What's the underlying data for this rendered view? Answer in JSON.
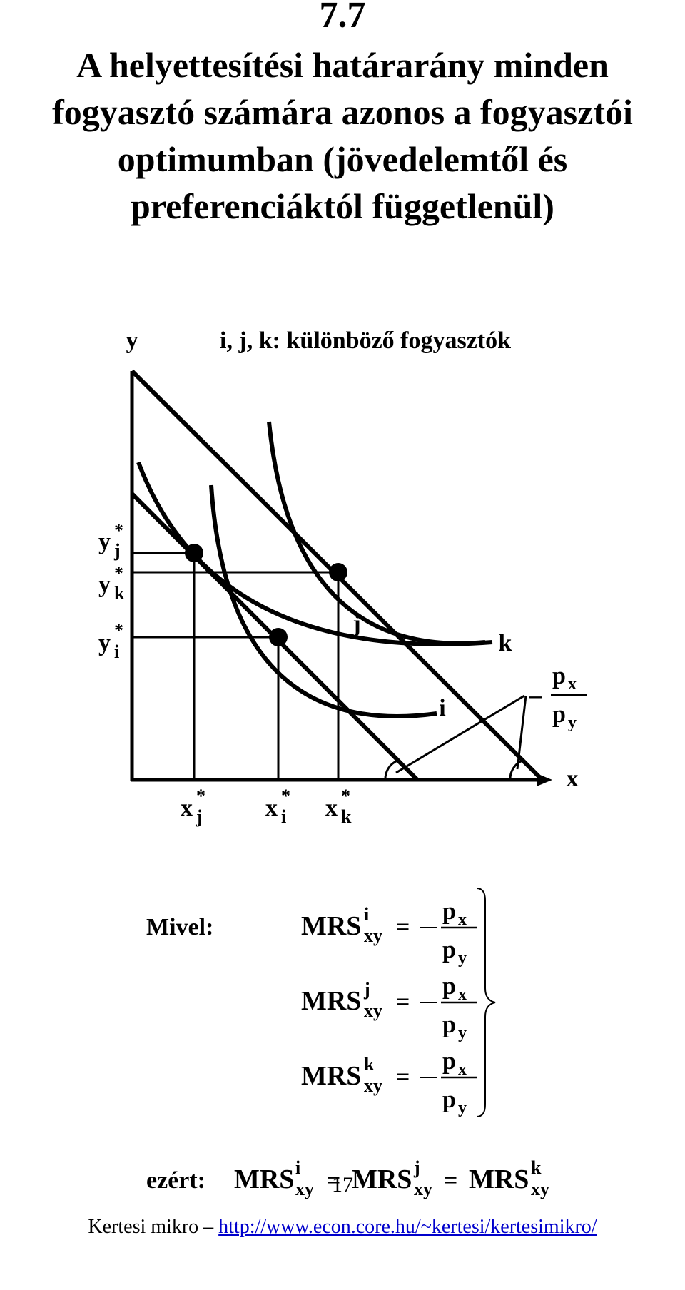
{
  "slide": {
    "number": "7.7",
    "title_lines": [
      "A helyettesítési határarány minden",
      "fogyasztó számára azonos a fogyasztói",
      "optimumban (jövedelemtől és",
      "preferenciáktól függetlenül)"
    ]
  },
  "diagram": {
    "y_axis": "y",
    "x_axis": "x",
    "note": "i, j, k: különböző fogyasztók",
    "curve_labels": {
      "i": "i",
      "j": "j",
      "k": "k"
    },
    "y_ticks": [
      {
        "base": "y",
        "sup": "*",
        "sub": "j"
      },
      {
        "base": "y",
        "sup": "*",
        "sub": "k"
      },
      {
        "base": "y",
        "sup": "*",
        "sub": "i"
      }
    ],
    "x_ticks": [
      {
        "base": "x",
        "sup": "*",
        "sub": "j"
      },
      {
        "base": "x",
        "sup": "*",
        "sub": "i"
      },
      {
        "base": "x",
        "sup": "*",
        "sub": "k"
      }
    ],
    "slope": {
      "sign": "–",
      "num": "p",
      "num_sub": "x",
      "den": "p",
      "den_sub": "y"
    }
  },
  "equations": {
    "lead": "Mivel:",
    "mrs": "MRS",
    "sub": "xy",
    "eq": "=",
    "rows": [
      {
        "sup": "i"
      },
      {
        "sup": "j"
      },
      {
        "sup": "k"
      }
    ],
    "conclusion_lead": "ezért:"
  },
  "footer": {
    "page": "17",
    "left": "Kertesi mikro –",
    "link": "http://www.econ.core.hu/~kertesi/kertesimikro/"
  }
}
